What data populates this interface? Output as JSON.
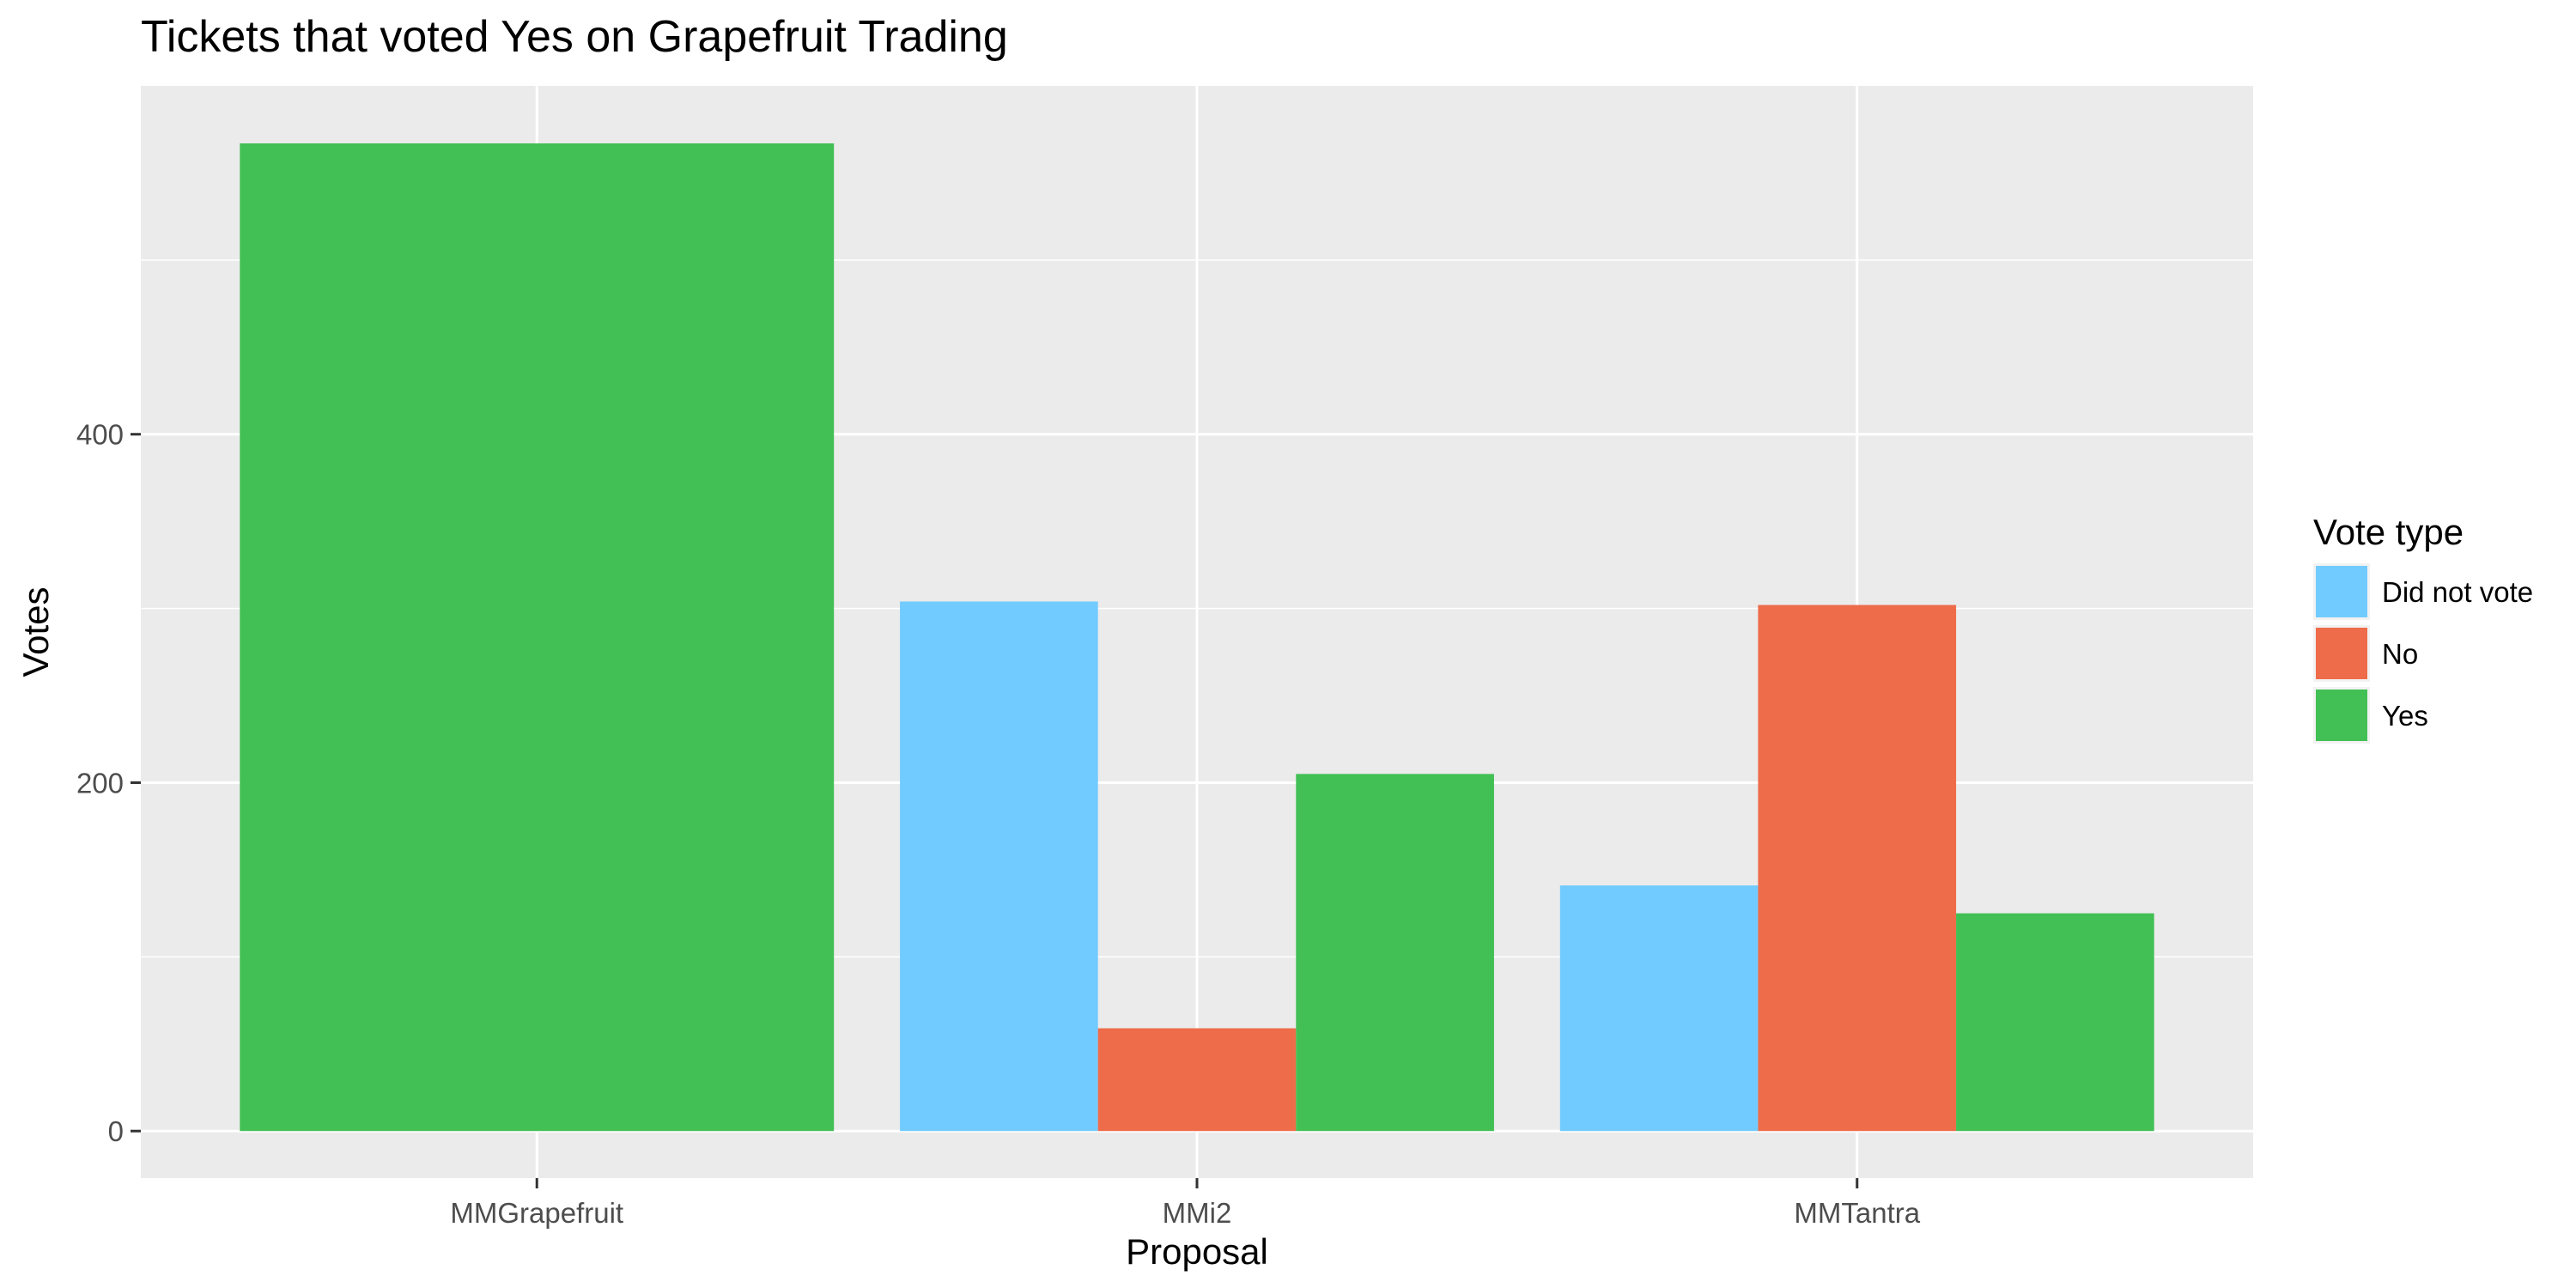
{
  "chart_data": {
    "type": "bar",
    "title": "Tickets that voted Yes on Grapefruit Trading",
    "xlabel": "Proposal",
    "ylabel": "Votes",
    "categories": [
      "MMGrapefruit",
      "MMi2",
      "MMTantra"
    ],
    "series": [
      {
        "name": "Did not vote",
        "color": "#72CBFF",
        "values": [
          null,
          304,
          141
        ]
      },
      {
        "name": "No",
        "color": "#EE6C4A",
        "values": [
          null,
          59,
          302
        ]
      },
      {
        "name": "Yes",
        "color": "#42C055",
        "values": [
          567,
          205,
          125
        ]
      }
    ],
    "ylim": [
      -27,
      600
    ],
    "yticks": [
      0,
      200,
      400
    ],
    "grid": true,
    "legend": {
      "title": "Vote type",
      "position": "right"
    },
    "panel_background": "#EBEBEB",
    "gridline_color": "#FFFFFF"
  }
}
